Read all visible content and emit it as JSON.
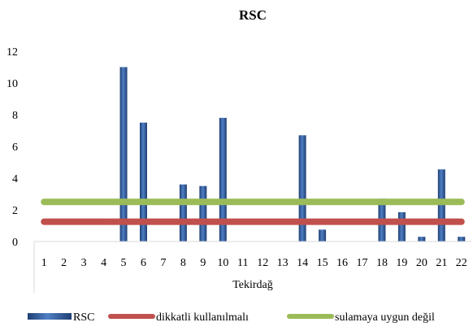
{
  "chart_data": {
    "type": "bar",
    "title": "RSC",
    "xlabel": "Tekirdağ",
    "ylabel": "",
    "ylim": [
      0,
      12
    ],
    "yticks": [
      0,
      2,
      4,
      6,
      8,
      10,
      12
    ],
    "grid": false,
    "categories": [
      "1",
      "2",
      "3",
      "4",
      "5",
      "6",
      "7",
      "8",
      "9",
      "10",
      "11",
      "12",
      "13",
      "14",
      "15",
      "16",
      "17",
      "18",
      "19",
      "20",
      "21",
      "22"
    ],
    "series": [
      {
        "name": "RSC",
        "kind": "bar",
        "color": "#2E5B9A",
        "values": [
          0,
          0,
          0,
          0,
          11.0,
          7.5,
          0,
          3.6,
          3.5,
          7.8,
          0,
          0,
          0,
          6.7,
          0.75,
          0,
          0,
          2.7,
          1.85,
          0.3,
          4.55,
          0.3
        ]
      },
      {
        "name": "dikkatli kullanılmalı",
        "kind": "line",
        "color": "#C0504D",
        "value": 1.25
      },
      {
        "name": "sulamaya uygun değil",
        "kind": "line",
        "color": "#9BBB59",
        "value": 2.5
      }
    ],
    "legend_position": "bottom"
  }
}
